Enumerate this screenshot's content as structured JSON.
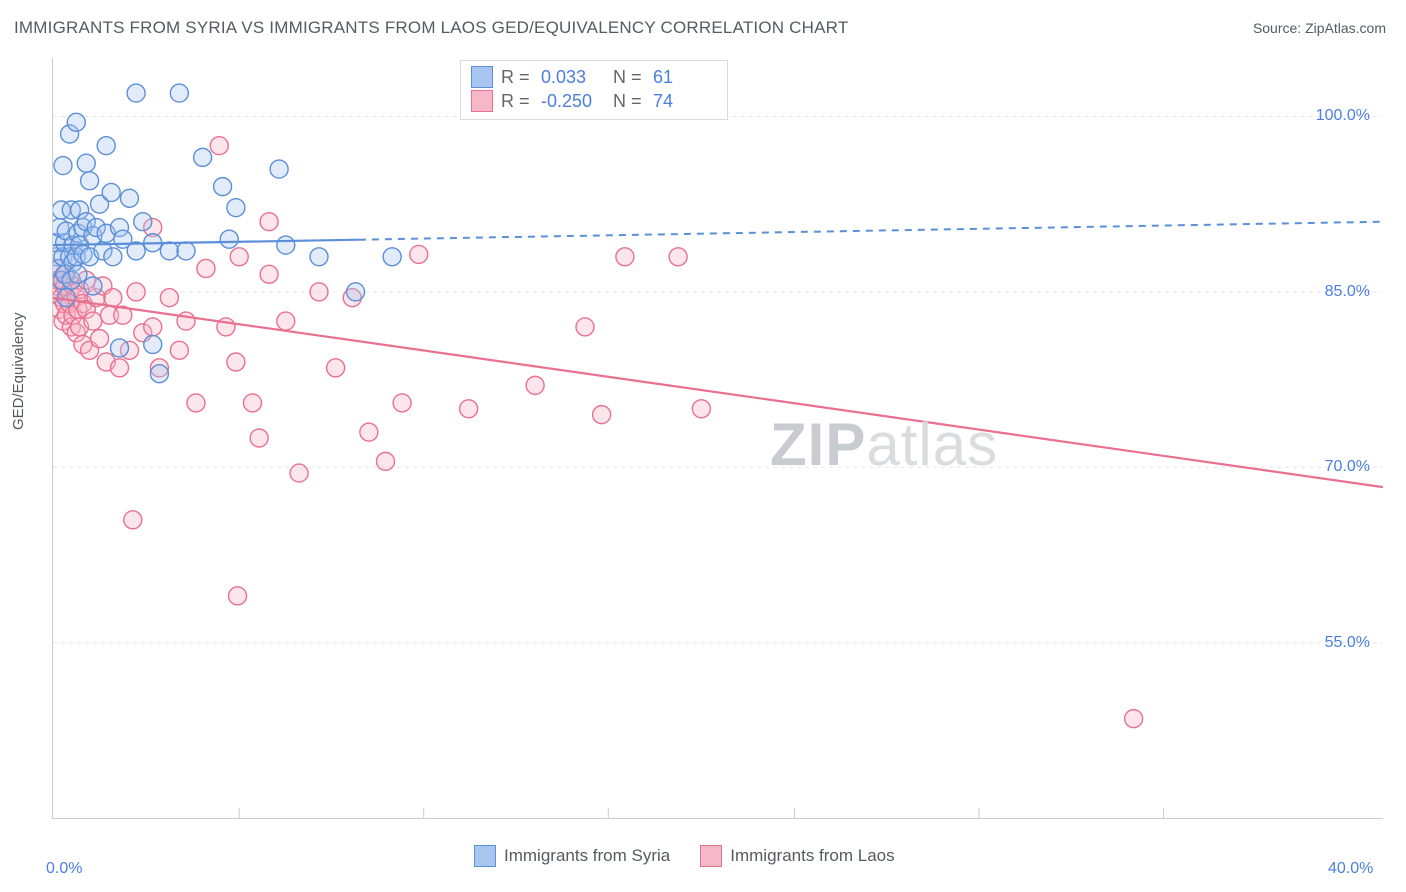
{
  "title": "IMMIGRANTS FROM SYRIA VS IMMIGRANTS FROM LAOS GED/EQUIVALENCY CORRELATION CHART",
  "source": "Source: ZipAtlas.com",
  "ylabel": "GED/Equivalency",
  "watermark": {
    "bold": "ZIP",
    "light": "atlas"
  },
  "plot": {
    "type": "scatter-with-regression",
    "background_color": "#ffffff",
    "grid_color": "#e3e6ea",
    "grid_dash": "4 4",
    "axis_color": "#c9cdd2",
    "xlim": [
      0,
      40
    ],
    "ylim": [
      40,
      105
    ],
    "xticks": [
      0,
      40
    ],
    "xtick_labels": [
      "0.0%",
      "40.0%"
    ],
    "xtick_minor": [
      5.6,
      11.15,
      16.7,
      22.3,
      27.85,
      33.4
    ],
    "yticks": [
      55,
      70,
      85,
      100
    ],
    "ytick_labels": [
      "55.0%",
      "70.0%",
      "85.0%",
      "100.0%"
    ],
    "marker_radius": 9,
    "marker_fill_opacity": 0.35,
    "marker_stroke_width": 1.4
  },
  "series": [
    {
      "name": "Immigrants from Syria",
      "color": "#6fa1e8",
      "fill": "#a8c6f0",
      "stroke": "#5b8fd8",
      "R": "0.033",
      "N": "61",
      "regression": {
        "y_at_x0": 89.0,
        "y_at_x40": 91.0,
        "solid_until_x": 9.2
      },
      "points": [
        [
          0.1,
          88.0
        ],
        [
          0.1,
          89.2
        ],
        [
          0.2,
          87.0
        ],
        [
          0.2,
          90.5
        ],
        [
          0.25,
          86.0
        ],
        [
          0.25,
          92.0
        ],
        [
          0.3,
          88.0
        ],
        [
          0.3,
          95.8
        ],
        [
          0.35,
          89.2
        ],
        [
          0.35,
          86.5
        ],
        [
          0.4,
          84.5
        ],
        [
          0.4,
          90.2
        ],
        [
          0.5,
          88.0
        ],
        [
          0.5,
          98.5
        ],
        [
          0.55,
          86.0
        ],
        [
          0.55,
          92.0
        ],
        [
          0.6,
          89.0
        ],
        [
          0.6,
          87.5
        ],
        [
          0.7,
          88.0
        ],
        [
          0.7,
          99.5
        ],
        [
          0.75,
          90.0
        ],
        [
          0.75,
          86.5
        ],
        [
          0.8,
          89.0
        ],
        [
          0.8,
          92.0
        ],
        [
          0.9,
          90.5
        ],
        [
          0.9,
          88.2
        ],
        [
          1.0,
          91.0
        ],
        [
          1.0,
          96.0
        ],
        [
          1.1,
          88.0
        ],
        [
          1.1,
          94.5
        ],
        [
          1.2,
          85.5
        ],
        [
          1.2,
          89.8
        ],
        [
          1.3,
          90.5
        ],
        [
          1.4,
          92.5
        ],
        [
          1.5,
          88.5
        ],
        [
          1.6,
          90.0
        ],
        [
          1.6,
          97.5
        ],
        [
          1.75,
          93.5
        ],
        [
          1.8,
          88.0
        ],
        [
          2.0,
          90.5
        ],
        [
          2.0,
          80.2
        ],
        [
          2.1,
          89.5
        ],
        [
          2.3,
          93.0
        ],
        [
          2.5,
          88.5
        ],
        [
          2.5,
          102.0
        ],
        [
          2.7,
          91.0
        ],
        [
          3.0,
          89.2
        ],
        [
          3.2,
          78.0
        ],
        [
          3.5,
          88.5
        ],
        [
          3.8,
          102.0
        ],
        [
          4.0,
          88.5
        ],
        [
          4.5,
          96.5
        ],
        [
          5.1,
          94.0
        ],
        [
          5.3,
          89.5
        ],
        [
          5.5,
          92.2
        ],
        [
          6.8,
          95.5
        ],
        [
          7.0,
          89.0
        ],
        [
          8.0,
          88.0
        ],
        [
          9.1,
          85.0
        ],
        [
          10.2,
          88.0
        ],
        [
          3.0,
          80.5
        ]
      ]
    },
    {
      "name": "Immigrants from Laos",
      "color": "#f092ac",
      "fill": "#f6b8c9",
      "stroke": "#e9708f",
      "R": "-0.250",
      "N": "74",
      "regression": {
        "y_at_x0": 84.5,
        "y_at_x40": 68.3,
        "solid_until_x": 40
      },
      "points": [
        [
          0.1,
          87.0
        ],
        [
          0.1,
          85.5
        ],
        [
          0.15,
          86.0
        ],
        [
          0.2,
          85.0
        ],
        [
          0.2,
          83.5
        ],
        [
          0.25,
          84.5
        ],
        [
          0.3,
          86.0
        ],
        [
          0.3,
          82.5
        ],
        [
          0.35,
          85.5
        ],
        [
          0.35,
          84.0
        ],
        [
          0.4,
          86.5
        ],
        [
          0.4,
          83.0
        ],
        [
          0.5,
          85.0
        ],
        [
          0.5,
          84.0
        ],
        [
          0.55,
          82.0
        ],
        [
          0.6,
          85.5
        ],
        [
          0.6,
          83.0
        ],
        [
          0.7,
          84.5
        ],
        [
          0.7,
          81.5
        ],
        [
          0.75,
          83.5
        ],
        [
          0.8,
          85.2
        ],
        [
          0.8,
          82.0
        ],
        [
          0.9,
          84.0
        ],
        [
          0.9,
          80.5
        ],
        [
          1.0,
          83.5
        ],
        [
          1.0,
          86.0
        ],
        [
          1.1,
          80.0
        ],
        [
          1.2,
          82.5
        ],
        [
          1.3,
          84.5
        ],
        [
          1.4,
          81.0
        ],
        [
          1.5,
          85.5
        ],
        [
          1.6,
          79.0
        ],
        [
          1.7,
          83.0
        ],
        [
          1.8,
          84.5
        ],
        [
          2.0,
          78.5
        ],
        [
          2.1,
          83.0
        ],
        [
          2.3,
          80.0
        ],
        [
          2.4,
          65.5
        ],
        [
          2.5,
          85.0
        ],
        [
          2.7,
          81.5
        ],
        [
          3.0,
          82.0
        ],
        [
          3.0,
          90.5
        ],
        [
          3.2,
          78.5
        ],
        [
          3.5,
          84.5
        ],
        [
          3.8,
          80.0
        ],
        [
          4.0,
          82.5
        ],
        [
          4.3,
          75.5
        ],
        [
          4.6,
          87.0
        ],
        [
          5.0,
          97.5
        ],
        [
          5.2,
          82.0
        ],
        [
          5.5,
          79.0
        ],
        [
          5.6,
          88.0
        ],
        [
          5.55,
          59.0
        ],
        [
          6.0,
          75.5
        ],
        [
          6.2,
          72.5
        ],
        [
          6.5,
          86.5
        ],
        [
          6.5,
          91.0
        ],
        [
          7.0,
          82.5
        ],
        [
          7.4,
          69.5
        ],
        [
          8.0,
          85.0
        ],
        [
          8.5,
          78.5
        ],
        [
          9.0,
          84.5
        ],
        [
          9.5,
          73.0
        ],
        [
          10.0,
          70.5
        ],
        [
          10.5,
          75.5
        ],
        [
          11.0,
          88.2
        ],
        [
          12.5,
          75.0
        ],
        [
          14.5,
          77.0
        ],
        [
          16.0,
          82.0
        ],
        [
          16.5,
          74.5
        ],
        [
          17.2,
          88.0
        ],
        [
          18.8,
          88.0
        ],
        [
          19.5,
          75.0
        ],
        [
          32.5,
          48.5
        ]
      ]
    }
  ],
  "stats_legend": {
    "label_color": "#666666",
    "value_color": "#4a7fe0",
    "rows": [
      {
        "swatch_fill": "#a8c6f0",
        "swatch_stroke": "#5b8fd8",
        "R": "0.033",
        "N": "61"
      },
      {
        "swatch_fill": "#f6b8c9",
        "swatch_stroke": "#e9708f",
        "R": "-0.250",
        "N": "74"
      }
    ]
  },
  "bottom_legend": [
    {
      "fill": "#a8c6f0",
      "stroke": "#5b8fd8",
      "label": "Immigrants from Syria"
    },
    {
      "fill": "#f6b8c9",
      "stroke": "#e9708f",
      "label": "Immigrants from Laos"
    }
  ]
}
